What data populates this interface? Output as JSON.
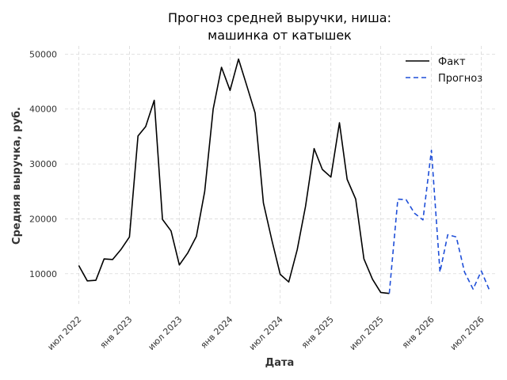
{
  "chart_data": {
    "type": "line",
    "title_lines": [
      "Прогноз средней выручки, ниша:",
      "машинка от катышек"
    ],
    "xlabel": "Дата",
    "ylabel": "Средняя выручка, руб.",
    "x_ticks": [
      {
        "date": "2022-07-01",
        "label": "июл 2022"
      },
      {
        "date": "2023-01-01",
        "label": "янв 2023"
      },
      {
        "date": "2023-07-01",
        "label": "июл 2023"
      },
      {
        "date": "2024-01-01",
        "label": "янв 2024"
      },
      {
        "date": "2024-07-01",
        "label": "июл 2024"
      },
      {
        "date": "2025-01-01",
        "label": "янв 2025"
      },
      {
        "date": "2025-07-01",
        "label": "июл 2025"
      },
      {
        "date": "2026-01-01",
        "label": "янв 2026"
      },
      {
        "date": "2026-07-01",
        "label": "июл 2026"
      }
    ],
    "y_ticks": [
      {
        "value": 10000,
        "label": "10000"
      },
      {
        "value": 20000,
        "label": "20000"
      },
      {
        "value": 30000,
        "label": "30000"
      },
      {
        "value": 40000,
        "label": "40000"
      },
      {
        "value": 50000,
        "label": "50000"
      }
    ],
    "xlim": [
      "2022-05-12",
      "2026-08-20"
    ],
    "ylim": [
      4200,
      51500
    ],
    "grid": true,
    "legend_position": "top-right",
    "series": [
      {
        "name": "Факт",
        "color": "#000000",
        "dash": "solid",
        "points": [
          {
            "x": "2022-07-01",
            "y": 11500
          },
          {
            "x": "2022-08-01",
            "y": 8700
          },
          {
            "x": "2022-09-01",
            "y": 8800
          },
          {
            "x": "2022-10-01",
            "y": 12700
          },
          {
            "x": "2022-11-01",
            "y": 12600
          },
          {
            "x": "2022-12-01",
            "y": 14400
          },
          {
            "x": "2023-01-01",
            "y": 16700
          },
          {
            "x": "2023-02-01",
            "y": 35100
          },
          {
            "x": "2023-03-01",
            "y": 36800
          },
          {
            "x": "2023-04-01",
            "y": 41600
          },
          {
            "x": "2023-05-01",
            "y": 19900
          },
          {
            "x": "2023-06-01",
            "y": 17800
          },
          {
            "x": "2023-07-01",
            "y": 11600
          },
          {
            "x": "2023-08-01",
            "y": 13800
          },
          {
            "x": "2023-09-01",
            "y": 16800
          },
          {
            "x": "2023-10-01",
            "y": 25000
          },
          {
            "x": "2023-11-01",
            "y": 40000
          },
          {
            "x": "2023-12-01",
            "y": 47600
          },
          {
            "x": "2024-01-01",
            "y": 43400
          },
          {
            "x": "2024-02-01",
            "y": 49100
          },
          {
            "x": "2024-03-01",
            "y": 44400
          },
          {
            "x": "2024-04-01",
            "y": 39300
          },
          {
            "x": "2024-05-01",
            "y": 22900
          },
          {
            "x": "2024-06-01",
            "y": 16100
          },
          {
            "x": "2024-07-01",
            "y": 9900
          },
          {
            "x": "2024-08-01",
            "y": 8500
          },
          {
            "x": "2024-09-01",
            "y": 14400
          },
          {
            "x": "2024-10-01",
            "y": 22300
          },
          {
            "x": "2024-11-01",
            "y": 32800
          },
          {
            "x": "2024-12-01",
            "y": 29000
          },
          {
            "x": "2025-01-01",
            "y": 27600
          },
          {
            "x": "2025-02-01",
            "y": 37500
          },
          {
            "x": "2025-03-01",
            "y": 27200
          },
          {
            "x": "2025-04-01",
            "y": 23600
          },
          {
            "x": "2025-05-01",
            "y": 12700
          },
          {
            "x": "2025-06-01",
            "y": 9000
          },
          {
            "x": "2025-07-01",
            "y": 6600
          },
          {
            "x": "2025-08-01",
            "y": 6400
          }
        ]
      },
      {
        "name": "Прогноз",
        "color": "#1f4fd8",
        "dash": "dashed",
        "points": [
          {
            "x": "2025-08-01",
            "y": 6400
          },
          {
            "x": "2025-09-01",
            "y": 23600
          },
          {
            "x": "2025-10-01",
            "y": 23500
          },
          {
            "x": "2025-11-01",
            "y": 21000
          },
          {
            "x": "2025-12-01",
            "y": 19800
          },
          {
            "x": "2026-01-01",
            "y": 32500
          },
          {
            "x": "2026-02-01",
            "y": 10300
          },
          {
            "x": "2026-03-01",
            "y": 17100
          },
          {
            "x": "2026-04-01",
            "y": 16700
          },
          {
            "x": "2026-05-01",
            "y": 10300
          },
          {
            "x": "2026-06-01",
            "y": 7200
          },
          {
            "x": "2026-07-01",
            "y": 10500
          },
          {
            "x": "2026-08-01",
            "y": 6800
          }
        ]
      }
    ]
  }
}
